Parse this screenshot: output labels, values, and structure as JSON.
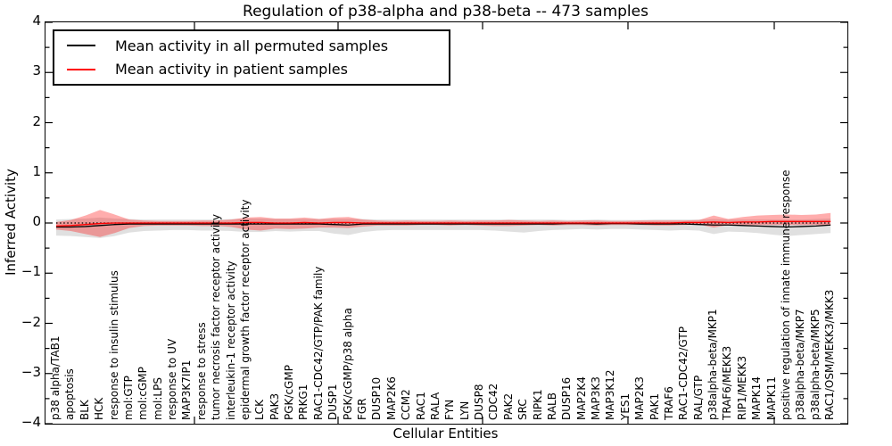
{
  "chart_data": {
    "type": "line",
    "title": "Regulation of p38-alpha and p38-beta -- 473 samples",
    "xlabel": "Cellular Entities",
    "ylabel": "Inferred Activity",
    "ylim": [
      -4,
      4
    ],
    "y_major_ticks": [
      "4",
      "3",
      "2",
      "1",
      "0",
      "−1",
      "−2",
      "−3",
      "−4"
    ],
    "y_minor_step": 0.5,
    "grid": false,
    "legend_position": "upper left",
    "zero_reference_line": 0,
    "categories": [
      "p38 alpha/TAB1",
      "apoptosis",
      "BLK",
      "HCK",
      "response to insulin stimulus",
      "mol:GTP",
      "mol:cGMP",
      "mol:LPS",
      "response to UV",
      "MAP3K7IP1",
      "response to stress",
      "tumor necrosis factor receptor activity",
      "interleukin-1 receptor activity",
      "epidermal growth factor receptor activity",
      "LCK",
      "PAK3",
      "PGK/cGMP",
      "PRKG1",
      "RAC1-CDC42/GTP/PAK family",
      "DUSP1",
      "PGK/cGMP/p38 alpha",
      "FGR",
      "DUSP10",
      "MAP2K6",
      "CCM2",
      "RAC1",
      "RALA",
      "FYN",
      "LYN",
      "DUSP8",
      "CDC42",
      "PAK2",
      "SRC",
      "RIPK1",
      "RALB",
      "DUSP16",
      "MAP2K4",
      "MAP3K3",
      "MAP3K12",
      "YES1",
      "MAP2K3",
      "PAK1",
      "TRAF6",
      "RAC1-CDC42/GTP",
      "RAL/GTP",
      "p38alpha-beta/MKP1",
      "TRAF6/MEKK3",
      "RIP1/MEKK3",
      "MAPK14",
      "MAPK11",
      "positive regulation of innate immune response",
      "p38alpha-beta/MKP7",
      "p38alpha-beta/MKP5",
      "RAC1/OSM/MEKK3/MKK3"
    ],
    "series": [
      {
        "name": "Mean activity in all permuted samples",
        "color": "#000000",
        "band_opacity": 0.12,
        "values": [
          -0.08,
          -0.08,
          -0.07,
          -0.05,
          -0.03,
          -0.02,
          -0.02,
          -0.02,
          -0.02,
          -0.02,
          -0.02,
          -0.02,
          -0.02,
          -0.02,
          -0.02,
          -0.02,
          -0.02,
          -0.02,
          -0.02,
          -0.03,
          -0.04,
          -0.02,
          -0.02,
          -0.02,
          -0.02,
          -0.02,
          -0.02,
          -0.02,
          -0.02,
          -0.02,
          -0.02,
          -0.02,
          -0.02,
          -0.02,
          -0.02,
          -0.01,
          -0.01,
          -0.02,
          -0.01,
          -0.01,
          -0.02,
          -0.02,
          -0.02,
          -0.02,
          -0.03,
          -0.04,
          -0.04,
          -0.05,
          -0.06,
          -0.07,
          -0.08,
          -0.07,
          -0.06,
          -0.04
        ],
        "band_upper": [
          0.07,
          0.08,
          0.09,
          0.11,
          0.09,
          0.08,
          0.07,
          0.07,
          0.07,
          0.07,
          0.07,
          0.07,
          0.08,
          0.09,
          0.09,
          0.08,
          0.08,
          0.08,
          0.08,
          0.08,
          0.08,
          0.08,
          0.07,
          0.07,
          0.07,
          0.07,
          0.07,
          0.07,
          0.07,
          0.07,
          0.07,
          0.07,
          0.07,
          0.07,
          0.07,
          0.06,
          0.06,
          0.07,
          0.06,
          0.06,
          0.06,
          0.07,
          0.07,
          0.07,
          0.07,
          0.08,
          0.07,
          0.07,
          0.07,
          0.07,
          0.07,
          0.07,
          0.08,
          0.09
        ],
        "band_lower": [
          -0.25,
          -0.26,
          -0.28,
          -0.3,
          -0.26,
          -0.19,
          -0.16,
          -0.15,
          -0.14,
          -0.14,
          -0.15,
          -0.15,
          -0.16,
          -0.18,
          -0.18,
          -0.16,
          -0.17,
          -0.16,
          -0.16,
          -0.21,
          -0.24,
          -0.18,
          -0.15,
          -0.14,
          -0.14,
          -0.14,
          -0.14,
          -0.14,
          -0.14,
          -0.14,
          -0.15,
          -0.17,
          -0.19,
          -0.16,
          -0.14,
          -0.13,
          -0.12,
          -0.13,
          -0.12,
          -0.12,
          -0.13,
          -0.14,
          -0.15,
          -0.14,
          -0.15,
          -0.22,
          -0.17,
          -0.18,
          -0.2,
          -0.23,
          -0.26,
          -0.24,
          -0.22,
          -0.2
        ]
      },
      {
        "name": "Mean activity in patient samples",
        "color": "#ff0000",
        "band_opacity": 0.32,
        "values": [
          -0.06,
          -0.05,
          -0.03,
          -0.01,
          0,
          0,
          0,
          0,
          0,
          0,
          0,
          0,
          0,
          0.01,
          0.01,
          0,
          0,
          0.01,
          0,
          0.01,
          0.01,
          0,
          0,
          0,
          0,
          0,
          0,
          0,
          0,
          0,
          0,
          0,
          0,
          0,
          0,
          0,
          0,
          0,
          0,
          0,
          0,
          0,
          0,
          0.01,
          0.01,
          0.02,
          0.01,
          0.02,
          0.02,
          0.03,
          0.03,
          0.03,
          0.03,
          0.03
        ],
        "band_upper": [
          0.02,
          0.06,
          0.15,
          0.26,
          0.17,
          0.07,
          0.05,
          0.04,
          0.04,
          0.04,
          0.05,
          0.05,
          0.07,
          0.11,
          0.12,
          0.09,
          0.09,
          0.11,
          0.08,
          0.11,
          0.12,
          0.07,
          0.05,
          0.04,
          0.05,
          0.04,
          0.04,
          0.05,
          0.04,
          0.05,
          0.05,
          0.06,
          0.05,
          0.04,
          0.05,
          0.04,
          0.05,
          0.05,
          0.04,
          0.04,
          0.05,
          0.05,
          0.05,
          0.05,
          0.06,
          0.15,
          0.08,
          0.12,
          0.15,
          0.16,
          0.17,
          0.16,
          0.17,
          0.2
        ],
        "band_lower": [
          -0.13,
          -0.16,
          -0.22,
          -0.28,
          -0.2,
          -0.1,
          -0.06,
          -0.05,
          -0.05,
          -0.05,
          -0.06,
          -0.06,
          -0.08,
          -0.13,
          -0.15,
          -0.11,
          -0.12,
          -0.11,
          -0.09,
          -0.09,
          -0.1,
          -0.07,
          -0.05,
          -0.05,
          -0.05,
          -0.04,
          -0.04,
          -0.05,
          -0.04,
          -0.05,
          -0.06,
          -0.06,
          -0.05,
          -0.04,
          -0.05,
          -0.04,
          -0.04,
          -0.05,
          -0.04,
          -0.04,
          -0.04,
          -0.05,
          -0.05,
          -0.04,
          -0.03,
          -0.09,
          -0.04,
          -0.04,
          -0.04,
          -0.04,
          -0.04,
          -0.04,
          -0.04,
          -0.05
        ]
      }
    ]
  },
  "legend": {
    "entries": [
      {
        "label": "Mean activity in all permuted samples",
        "color": "#000000"
      },
      {
        "label": "Mean activity in patient samples",
        "color": "#ff0000"
      }
    ]
  }
}
